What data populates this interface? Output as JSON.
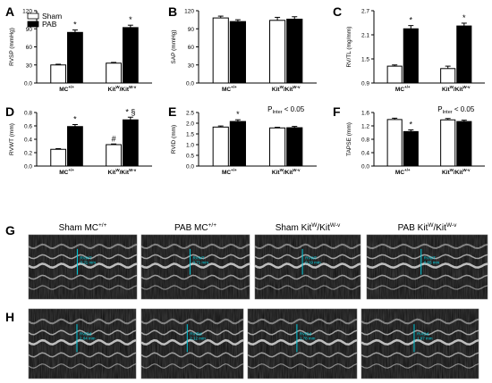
{
  "legend": {
    "sham": "Sham",
    "pab": "PAB"
  },
  "groups": [
    "MC",
    "Kit",
    "/Kit"
  ],
  "sup": {
    "mc": "+/+",
    "kitW": "W",
    "kitWv": "W-v"
  },
  "chart_data": [
    {
      "type": "bar",
      "panel": "A",
      "ylabel": "RVSP (mmHg)",
      "ylim": [
        0,
        120
      ],
      "ticks": [
        0,
        30,
        60,
        90,
        120
      ],
      "series": [
        {
          "name": "Sham",
          "values": [
            30,
            33
          ]
        },
        {
          "name": "PAB",
          "values": [
            84,
            92
          ]
        }
      ],
      "errors": [
        [
          1.2,
          1.2
        ],
        [
          4,
          4
        ]
      ],
      "stars": [
        [
          false,
          false
        ],
        [
          "*",
          "*"
        ]
      ]
    },
    {
      "type": "bar",
      "panel": "B",
      "ylabel": "SAP (mmHg)",
      "ylim": [
        0,
        120
      ],
      "ticks": [
        0,
        30,
        60,
        90,
        120
      ],
      "series": [
        {
          "name": "Sham",
          "values": [
            108,
            104
          ]
        },
        {
          "name": "PAB",
          "values": [
            102,
            106
          ]
        }
      ],
      "errors": [
        [
          3,
          5
        ],
        [
          3,
          4
        ]
      ],
      "stars": [
        [
          false,
          false
        ],
        [
          false,
          false
        ]
      ]
    },
    {
      "type": "bar",
      "panel": "C",
      "ylabel": "RV/TL (mg/mm)",
      "ylim": [
        0.9,
        2.7
      ],
      "ticks": [
        0.9,
        1.5,
        2.1,
        2.7
      ],
      "series": [
        {
          "name": "Sham",
          "values": [
            1.32,
            1.26
          ]
        },
        {
          "name": "PAB",
          "values": [
            2.25,
            2.32
          ]
        }
      ],
      "errors": [
        [
          0.03,
          0.06
        ],
        [
          0.08,
          0.07
        ]
      ],
      "stars": [
        [
          false,
          false
        ],
        [
          "*",
          "*"
        ]
      ]
    },
    {
      "type": "bar",
      "panel": "D",
      "ylabel": "RVWT (mm)",
      "ylim": [
        0,
        0.8
      ],
      "ticks": [
        0.0,
        0.2,
        0.4,
        0.6,
        0.8
      ],
      "series": [
        {
          "name": "Sham",
          "values": [
            0.25,
            0.32
          ]
        },
        {
          "name": "PAB",
          "values": [
            0.59,
            0.69
          ]
        }
      ],
      "errors": [
        [
          0.01,
          0.01
        ],
        [
          0.03,
          0.04
        ]
      ],
      "stars": [
        [
          false,
          "#"
        ],
        [
          "*",
          "* §"
        ]
      ]
    },
    {
      "type": "bar",
      "panel": "E",
      "ylabel": "RVID (mm)",
      "ylim": [
        0,
        2.5
      ],
      "ticks": [
        0.0,
        0.5,
        1.0,
        1.5,
        2.0,
        2.5
      ],
      "series": [
        {
          "name": "Sham",
          "values": [
            1.82,
            1.78
          ]
        },
        {
          "name": "PAB",
          "values": [
            2.08,
            1.79
          ]
        }
      ],
      "errors": [
        [
          0.05,
          0.03
        ],
        [
          0.08,
          0.06
        ]
      ],
      "stars": [
        [
          false,
          false
        ],
        [
          "*",
          false
        ]
      ],
      "annotation": {
        "base": "P",
        "sub": "Inter",
        "rest": " < 0.05"
      }
    },
    {
      "type": "bar",
      "panel": "F",
      "ylabel": "TAPSE (mm)",
      "ylim": [
        0,
        1.6
      ],
      "ticks": [
        0.0,
        0.4,
        0.8,
        1.2,
        1.6
      ],
      "series": [
        {
          "name": "Sham",
          "values": [
            1.39,
            1.38
          ]
        },
        {
          "name": "PAB",
          "values": [
            1.03,
            1.33
          ]
        }
      ],
      "errors": [
        [
          0.04,
          0.04
        ],
        [
          0.05,
          0.04
        ]
      ],
      "stars": [
        [
          false,
          false
        ],
        [
          "*",
          false
        ]
      ],
      "annotation": {
        "base": "P",
        "sub": "Inter",
        "rest": " < 0.05"
      }
    }
  ],
  "echo": {
    "row_g": "G",
    "row_h": "H",
    "titles": [
      {
        "pre": "Sham MC",
        "sup": "+/+"
      },
      {
        "pre": "PAB MC",
        "sup": "+/+"
      },
      {
        "pre": "Sham Kit",
        "sup": "W",
        "mid": "/Kit",
        "sup2": "W-v"
      },
      {
        "pre": "PAB Kit",
        "sup": "W",
        "mid": "/Kit",
        "sup2": "W-v"
      }
    ],
    "g_labels": [
      "RVWT\n0.21 mm",
      "RVWT\n0.71 mm",
      "RVWT\n0.19 mm",
      "RVWT\n0.65 mm"
    ],
    "h_labels": [
      "RVIDd\n2.04 mm",
      "RVIDd\n2.12 mm",
      "RVIDd\n1.78 mm",
      "RVIDd\n1.97 mm"
    ]
  }
}
